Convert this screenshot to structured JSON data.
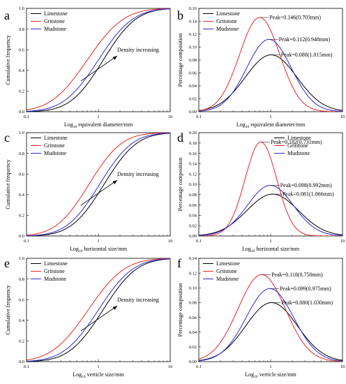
{
  "chart_data": [
    {
      "panel": "a",
      "type": "line",
      "xlabel": "Log10 equivalent diameter/mm",
      "ylabel": "Cumulative frequency",
      "xscale": "log",
      "xlim": [
        0.1,
        10
      ],
      "ylim": [
        0,
        1.0
      ],
      "xticks": [
        "0.1",
        "1",
        "10"
      ],
      "yticks": [
        "0.0",
        "0.2",
        "0.4",
        "0.6",
        "0.8",
        "1.0"
      ],
      "legend": "top-left",
      "annotation": "Density increasing",
      "series": [
        {
          "name": "Limestone",
          "color": "#000000",
          "kind": "cdf",
          "mu": 1.17,
          "sigma": 0.36
        },
        {
          "name": "Gritstone",
          "color": "#e8262a",
          "kind": "cdf",
          "mu": 0.7,
          "sigma": 0.4
        },
        {
          "name": "Mudstone",
          "color": "#2b2bd6",
          "kind": "cdf",
          "mu": 1.0,
          "sigma": 0.38
        }
      ]
    },
    {
      "panel": "b",
      "type": "line",
      "xlabel": "Log10 equivalent diameter/mm",
      "ylabel": "Percentage composition",
      "xscale": "log",
      "xlim": [
        0.1,
        10
      ],
      "ylim": [
        0,
        0.16
      ],
      "xticks": [
        "0.1",
        "1",
        "10"
      ],
      "yticks": [
        "0.00",
        "0.02",
        "0.04",
        "0.06",
        "0.08",
        "0.10",
        "0.12",
        "0.14",
        "0.16"
      ],
      "legend": "top-left",
      "series": [
        {
          "name": "Limestone",
          "color": "#000000",
          "kind": "pdf",
          "peak": 0.088,
          "mode": 1.015,
          "sigma": 0.36
        },
        {
          "name": "Gritstone",
          "color": "#e8262a",
          "kind": "pdf",
          "peak": 0.146,
          "mode": 0.703,
          "sigma": 0.28
        },
        {
          "name": "Mudstone",
          "color": "#2b2bd6",
          "kind": "pdf",
          "peak": 0.112,
          "mode": 0.948,
          "sigma": 0.31
        }
      ],
      "annotations": [
        "Peak=0.146(0.703mm)",
        "Peak=0.112(0.948mm)",
        "Peak=0.088(1.015mm)"
      ]
    },
    {
      "panel": "c",
      "type": "line",
      "xlabel": "Log10 horizontal size/mm",
      "ylabel": "Cumulative frequency",
      "xscale": "log",
      "xlim": [
        0.1,
        10
      ],
      "ylim": [
        0,
        1.0
      ],
      "xticks": [
        "0.1",
        "1",
        "10"
      ],
      "yticks": [
        "0.0",
        "0.2",
        "0.4",
        "0.6",
        "0.8",
        "1.0"
      ],
      "legend": "top-left",
      "annotation": "Density increasing",
      "series": [
        {
          "name": "Limestone",
          "color": "#000000",
          "kind": "cdf",
          "mu": 1.2,
          "sigma": 0.36
        },
        {
          "name": "Gritstone",
          "color": "#e8262a",
          "kind": "cdf",
          "mu": 0.74,
          "sigma": 0.36
        },
        {
          "name": "Mudstone",
          "color": "#2b2bd6",
          "kind": "cdf",
          "mu": 1.04,
          "sigma": 0.36
        }
      ]
    },
    {
      "panel": "d",
      "type": "line",
      "xlabel": "Log10 horizontal size/mm",
      "ylabel": "Percentage composition",
      "xscale": "log",
      "xlim": [
        0.1,
        10
      ],
      "ylim": [
        0,
        0.2
      ],
      "xticks": [
        "0.1",
        "1",
        "10"
      ],
      "yticks": [
        "0.00",
        "0.02",
        "0.04",
        "0.06",
        "0.08",
        "0.10",
        "0.12",
        "0.14",
        "0.16",
        "0.18",
        "0.20"
      ],
      "legend": "top-right",
      "series": [
        {
          "name": "Limestone",
          "color": "#000000",
          "kind": "pdf",
          "peak": 0.081,
          "mode": 1.066,
          "sigma": 0.36
        },
        {
          "name": "Gritstone",
          "color": "#e8262a",
          "kind": "pdf",
          "peak": 0.182,
          "mode": 0.731,
          "sigma": 0.22
        },
        {
          "name": "Mudstone",
          "color": "#2b2bd6",
          "kind": "pdf",
          "peak": 0.098,
          "mode": 0.992,
          "sigma": 0.32
        }
      ],
      "annotations": [
        "Peak=0.182(0.731mm)",
        "Peak=0.098(0.992mm)",
        "Peak=0.081(1.066mm)"
      ]
    },
    {
      "panel": "e",
      "type": "line",
      "xlabel": "Log10 verticle size/mm",
      "ylabel": "Cumulative frequency",
      "xscale": "log",
      "xlim": [
        0.1,
        10
      ],
      "ylim": [
        0,
        1.0
      ],
      "xticks": [
        "0.1",
        "1",
        "10"
      ],
      "yticks": [
        "0.0",
        "0.2",
        "0.4",
        "0.6",
        "0.8",
        "1.0"
      ],
      "legend": "top-left",
      "annotation": "Density increasing",
      "series": [
        {
          "name": "Limestone",
          "color": "#000000",
          "kind": "cdf",
          "mu": 1.16,
          "sigma": 0.37
        },
        {
          "name": "Gritstone",
          "color": "#e8262a",
          "kind": "cdf",
          "mu": 0.72,
          "sigma": 0.4
        },
        {
          "name": "Mudstone",
          "color": "#2b2bd6",
          "kind": "cdf",
          "mu": 1.0,
          "sigma": 0.38
        }
      ]
    },
    {
      "panel": "f",
      "type": "line",
      "xlabel": "Log10 verticle size/mm",
      "ylabel": "Percentage composition",
      "xscale": "log",
      "xlim": [
        0.1,
        10
      ],
      "ylim": [
        0,
        0.14
      ],
      "xticks": [
        "0.1",
        "1",
        "10"
      ],
      "yticks": [
        "0.00",
        "0.02",
        "0.04",
        "0.06",
        "0.08",
        "0.10",
        "0.12",
        "0.14"
      ],
      "legend": "top-left",
      "series": [
        {
          "name": "Limestone",
          "color": "#000000",
          "kind": "pdf",
          "peak": 0.08,
          "mode": 1.03,
          "sigma": 0.36
        },
        {
          "name": "Gritstone",
          "color": "#e8262a",
          "kind": "pdf",
          "peak": 0.118,
          "mode": 0.75,
          "sigma": 0.33
        },
        {
          "name": "Mudstone",
          "color": "#2b2bd6",
          "kind": "pdf",
          "peak": 0.099,
          "mode": 0.975,
          "sigma": 0.33
        }
      ],
      "annotations": [
        "Peak=0.118(0.750mm)",
        "Peak=0.099(0.975mm)",
        "Peak=0.080(1.030mm)"
      ]
    }
  ]
}
